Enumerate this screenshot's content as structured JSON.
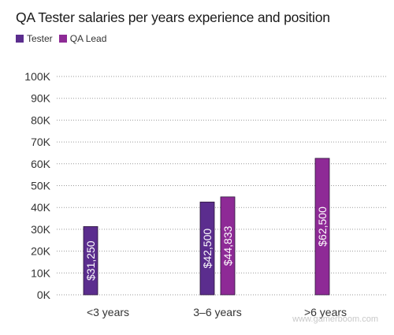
{
  "chart_data": {
    "type": "bar",
    "title": "QA Tester salaries per years experience and position",
    "categories": [
      "<3 years",
      "3–6 years",
      ">6 years"
    ],
    "series": [
      {
        "name": "Tester",
        "color": "#5b2d8e",
        "values": [
          31250,
          42500,
          null
        ],
        "labels": [
          "$31,250",
          "$42,500",
          ""
        ]
      },
      {
        "name": "QA Lead",
        "color": "#8e2a96",
        "values": [
          null,
          44833,
          62500
        ],
        "labels": [
          "",
          "$44,833",
          "$62,500"
        ]
      }
    ],
    "ylim": [
      0,
      100000
    ],
    "yticks": [
      "0K",
      "10K",
      "20K",
      "30K",
      "40K",
      "50K",
      "60K",
      "70K",
      "80K",
      "90K",
      "100K"
    ],
    "xlabel": "",
    "ylabel": "",
    "grid": "horizontal dotted",
    "legend_position": "top-left"
  },
  "watermark": "www.gamerboom.com"
}
